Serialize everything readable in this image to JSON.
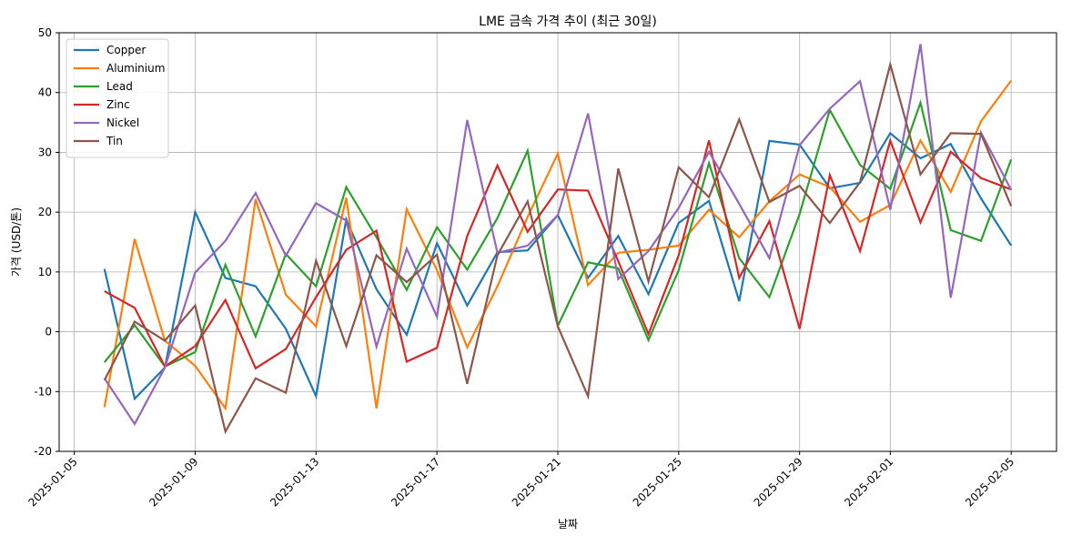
{
  "chart_data": {
    "type": "line",
    "title": "LME 금속 가격 추이 (최근 30일)",
    "xlabel": "날짜",
    "ylabel": "가격 (USD/톤)",
    "x": [
      "2025-01-06",
      "2025-01-07",
      "2025-01-08",
      "2025-01-09",
      "2025-01-10",
      "2025-01-11",
      "2025-01-12",
      "2025-01-13",
      "2025-01-14",
      "2025-01-15",
      "2025-01-16",
      "2025-01-17",
      "2025-01-18",
      "2025-01-19",
      "2025-01-20",
      "2025-01-21",
      "2025-01-22",
      "2025-01-23",
      "2025-01-24",
      "2025-01-25",
      "2025-01-26",
      "2025-01-27",
      "2025-01-28",
      "2025-01-29",
      "2025-01-30",
      "2025-01-31",
      "2025-02-01",
      "2025-02-02",
      "2025-02-03",
      "2025-02-04",
      "2025-02-05"
    ],
    "x_ticks": [
      "2025-01-05",
      "2025-01-09",
      "2025-01-13",
      "2025-01-17",
      "2025-01-21",
      "2025-01-25",
      "2025-01-29",
      "2025-02-01",
      "2025-02-05"
    ],
    "ylim": [
      -20,
      50
    ],
    "y_ticks": [
      -20,
      -10,
      0,
      10,
      20,
      30,
      40,
      50
    ],
    "grid": true,
    "legend_position": "top-left",
    "series": [
      {
        "name": "Copper",
        "color": "#1f77b4",
        "values": [
          10.5,
          -11.2,
          -6,
          20,
          9,
          7.6,
          0.5,
          -10.8,
          18.8,
          7.1,
          -0.5,
          14.8,
          4.4,
          13.3,
          13.6,
          19.5,
          9,
          16,
          6.3,
          18.2,
          21.9,
          5.1,
          31.9,
          31.3,
          24,
          24.9,
          33.2,
          29,
          31.4,
          22.3,
          14.4
        ]
      },
      {
        "name": "Aluminium",
        "color": "#ff7f0e",
        "values": [
          -12.6,
          15.5,
          -1.5,
          -5.7,
          -12.8,
          22.2,
          6.2,
          0.9,
          22.4,
          -12.8,
          20.5,
          10.3,
          -2.6,
          7.6,
          19.2,
          29.8,
          7.8,
          13.2,
          13.7,
          14.4,
          20.4,
          15.8,
          21.8,
          26.3,
          24.2,
          18.4,
          21.2,
          32,
          23.4,
          35.2,
          42
        ]
      },
      {
        "name": "Lead",
        "color": "#2ca02c",
        "values": [
          -5.1,
          1.1,
          -5.8,
          -3.4,
          11.2,
          -0.8,
          13,
          7.6,
          24.2,
          15.8,
          7,
          17.5,
          10.4,
          19,
          30.3,
          1,
          11.6,
          10.6,
          -1.4,
          10.3,
          28.2,
          12.3,
          5.8,
          19.7,
          37.1,
          27.9,
          23.9,
          38.3,
          17,
          15.2,
          28.8
        ]
      },
      {
        "name": "Zinc",
        "color": "#d62728",
        "values": [
          6.8,
          4,
          -5.8,
          -2.4,
          5.3,
          -6.1,
          -2.9,
          5.8,
          13.7,
          16.9,
          -5,
          -2.7,
          16,
          27.8,
          16.7,
          23.8,
          23.6,
          11.8,
          -0.4,
          12.8,
          32,
          9,
          18.5,
          0.5,
          26.2,
          13.5,
          32,
          18.3,
          30.1,
          25.7,
          23.8
        ]
      },
      {
        "name": "Nickel",
        "color": "#9467bd",
        "values": [
          -7.8,
          -15.4,
          -6,
          9.9,
          15.2,
          23.2,
          12.7,
          21.5,
          18.6,
          -2.5,
          13.9,
          2.5,
          35.4,
          13.2,
          14.4,
          19.5,
          36.5,
          8.8,
          13.5,
          20.7,
          30.1,
          21.4,
          12.3,
          31.2,
          37.3,
          41.9,
          20.4,
          48.1,
          5.7,
          33.3,
          23.7
        ]
      },
      {
        "name": "Tin",
        "color": "#8c564b",
        "values": [
          -8.1,
          1.7,
          -1.5,
          4.4,
          -16.7,
          -7.8,
          -10.2,
          11.9,
          -2.4,
          12.8,
          8.3,
          12.9,
          -8.7,
          12.8,
          21.8,
          0.9,
          -10.8,
          27.3,
          8.4,
          27.5,
          22.5,
          35.5,
          21.7,
          24.4,
          18.2,
          25,
          44.7,
          26.3,
          33.2,
          33.1,
          21
        ]
      }
    ]
  }
}
